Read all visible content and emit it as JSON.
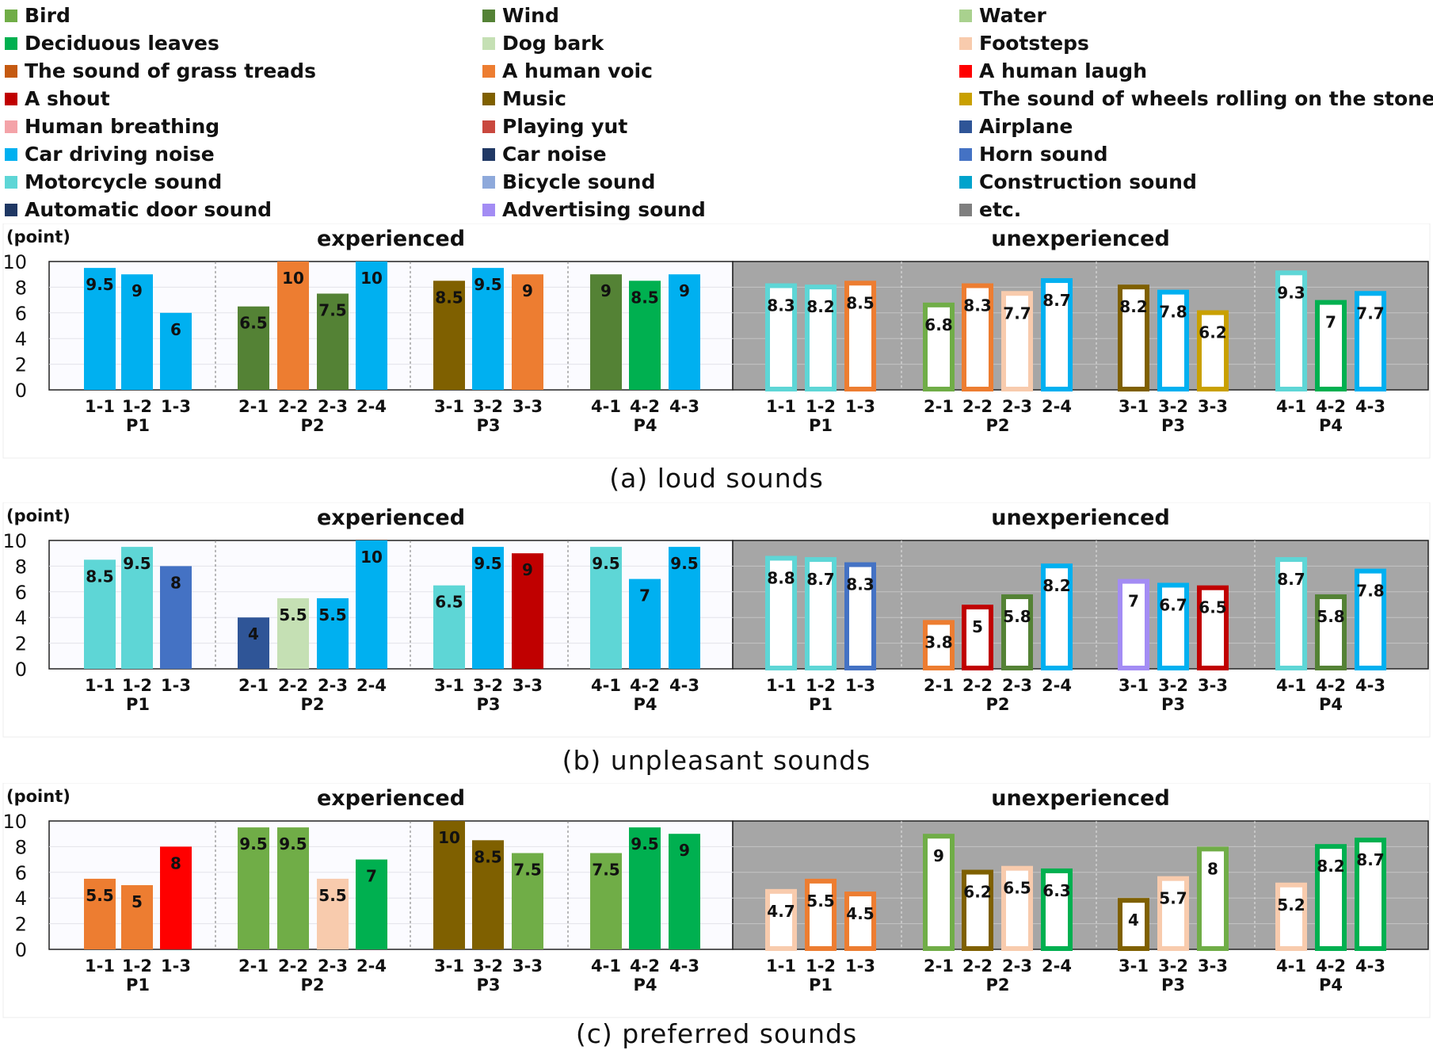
{
  "legend": [
    {
      "label": "Bird",
      "color": "#70AD47"
    },
    {
      "label": "Deciduous leaves",
      "color": "#00B050"
    },
    {
      "label": "The sound of grass treads",
      "color": "#C55A11"
    },
    {
      "label": "A shout",
      "color": "#C00000"
    },
    {
      "label": "Human breathing",
      "color": "#F4A3A8"
    },
    {
      "label": "Car driving noise",
      "color": "#00B0F0"
    },
    {
      "label": "Motorcycle sound",
      "color": "#5ED6D6"
    },
    {
      "label": "Automatic door sound",
      "color": "#1F3864"
    },
    {
      "label": "Wind",
      "color": "#548235"
    },
    {
      "label": "Dog bark",
      "color": "#C5E0B4"
    },
    {
      "label": "A human voic",
      "color": "#ED7D31"
    },
    {
      "label": "Music",
      "color": "#7F6000"
    },
    {
      "label": "Playing yut",
      "color": "#C9483E"
    },
    {
      "label": "Car noise",
      "color": "#203864"
    },
    {
      "label": "Bicycle sound",
      "color": "#8EA9DB"
    },
    {
      "label": "Advertising sound",
      "color": "#A38CF4"
    },
    {
      "label": "Water",
      "color": "#A9D18E"
    },
    {
      "label": "Footsteps",
      "color": "#F8CBAD"
    },
    {
      "label": "A human laugh",
      "color": "#FF0000"
    },
    {
      "label": "The sound of wheels rolling on the stone floor",
      "color": "#C9A000"
    },
    {
      "label": "Airplane",
      "color": "#2F5597"
    },
    {
      "label": "Horn sound",
      "color": "#4472C4"
    },
    {
      "label": "Construction sound",
      "color": "#00A3CC"
    },
    {
      "label": "etc.",
      "color": "#7F7F7F"
    }
  ],
  "chart_data": [
    {
      "type": "bar",
      "caption": "(a)  loud sounds",
      "ylabel": "(point)",
      "ylim": [
        0,
        10
      ],
      "yticks": [
        0,
        2,
        4,
        6,
        8,
        10
      ],
      "group_titles": [
        "experienced",
        "unexperienced"
      ],
      "experienced": [
        {
          "name": "P1",
          "bars": [
            {
              "label": "1-1",
              "value": 9.5,
              "color": "#00B0F0"
            },
            {
              "label": "1-2",
              "value": 9,
              "color": "#00B0F0"
            },
            {
              "label": "1-3",
              "value": 6,
              "color": "#00B0F0"
            }
          ]
        },
        {
          "name": "P2",
          "bars": [
            {
              "label": "2-1",
              "value": 6.5,
              "color": "#548235"
            },
            {
              "label": "2-2",
              "value": 10,
              "color": "#ED7D31"
            },
            {
              "label": "2-3",
              "value": 7.5,
              "color": "#548235"
            },
            {
              "label": "2-4",
              "value": 10,
              "color": "#00B0F0"
            }
          ]
        },
        {
          "name": "P3",
          "bars": [
            {
              "label": "3-1",
              "value": 8.5,
              "color": "#7F6000"
            },
            {
              "label": "3-2",
              "value": 9.5,
              "color": "#00B0F0"
            },
            {
              "label": "3-3",
              "value": 9,
              "color": "#ED7D31"
            }
          ]
        },
        {
          "name": "P4",
          "bars": [
            {
              "label": "4-1",
              "value": 9,
              "color": "#548235"
            },
            {
              "label": "4-2",
              "value": 8.5,
              "color": "#00B050"
            },
            {
              "label": "4-3",
              "value": 9,
              "color": "#00B0F0"
            }
          ]
        }
      ],
      "unexperienced": [
        {
          "name": "P1",
          "bars": [
            {
              "label": "1-1",
              "value": 8.3,
              "color": "#5ED6D6"
            },
            {
              "label": "1-2",
              "value": 8.2,
              "color": "#5ED6D6"
            },
            {
              "label": "1-3",
              "value": 8.5,
              "color": "#ED7D31"
            }
          ]
        },
        {
          "name": "P2",
          "bars": [
            {
              "label": "2-1",
              "value": 6.8,
              "color": "#70AD47"
            },
            {
              "label": "2-2",
              "value": 8.3,
              "color": "#ED7D31"
            },
            {
              "label": "2-3",
              "value": 7.7,
              "color": "#F8CBAD"
            },
            {
              "label": "2-4",
              "value": 8.7,
              "color": "#00B0F0"
            }
          ]
        },
        {
          "name": "P3",
          "bars": [
            {
              "label": "3-1",
              "value": 8.2,
              "color": "#7F6000"
            },
            {
              "label": "3-2",
              "value": 7.8,
              "color": "#00B0F0"
            },
            {
              "label": "3-3",
              "value": 6.2,
              "color": "#C9A000"
            }
          ]
        },
        {
          "name": "P4",
          "bars": [
            {
              "label": "4-1",
              "value": 9.3,
              "color": "#5ED6D6"
            },
            {
              "label": "4-2",
              "value": 7,
              "color": "#00B050"
            },
            {
              "label": "4-3",
              "value": 7.7,
              "color": "#00B0F0"
            }
          ]
        }
      ]
    },
    {
      "type": "bar",
      "caption": "(b)  unpleasant sounds",
      "ylabel": "(point)",
      "ylim": [
        0,
        10
      ],
      "yticks": [
        0,
        2,
        4,
        6,
        8,
        10
      ],
      "group_titles": [
        "experienced",
        "unexperienced"
      ],
      "experienced": [
        {
          "name": "P1",
          "bars": [
            {
              "label": "1-1",
              "value": 8.5,
              "color": "#5ED6D6"
            },
            {
              "label": "1-2",
              "value": 9.5,
              "color": "#5ED6D6"
            },
            {
              "label": "1-3",
              "value": 8,
              "color": "#4472C4"
            }
          ]
        },
        {
          "name": "P2",
          "bars": [
            {
              "label": "2-1",
              "value": 4,
              "color": "#2F5597"
            },
            {
              "label": "2-2",
              "value": 5.5,
              "color": "#C5E0B4"
            },
            {
              "label": "2-3",
              "value": 5.5,
              "color": "#00B0F0"
            },
            {
              "label": "2-4",
              "value": 10,
              "color": "#00B0F0"
            }
          ]
        },
        {
          "name": "P3",
          "bars": [
            {
              "label": "3-1",
              "value": 6.5,
              "color": "#5ED6D6"
            },
            {
              "label": "3-2",
              "value": 9.5,
              "color": "#00B0F0"
            },
            {
              "label": "3-3",
              "value": 9,
              "color": "#C00000"
            }
          ]
        },
        {
          "name": "P4",
          "bars": [
            {
              "label": "4-1",
              "value": 9.5,
              "color": "#5ED6D6"
            },
            {
              "label": "4-2",
              "value": 7,
              "color": "#00B0F0"
            },
            {
              "label": "4-3",
              "value": 9.5,
              "color": "#00B0F0"
            }
          ]
        }
      ],
      "unexperienced": [
        {
          "name": "P1",
          "bars": [
            {
              "label": "1-1",
              "value": 8.8,
              "color": "#5ED6D6"
            },
            {
              "label": "1-2",
              "value": 8.7,
              "color": "#5ED6D6"
            },
            {
              "label": "1-3",
              "value": 8.3,
              "color": "#4472C4"
            }
          ]
        },
        {
          "name": "P2",
          "bars": [
            {
              "label": "2-1",
              "value": 3.8,
              "color": "#ED7D31"
            },
            {
              "label": "2-2",
              "value": 5,
              "color": "#C00000"
            },
            {
              "label": "2-3",
              "value": 5.8,
              "color": "#548235"
            },
            {
              "label": "2-4",
              "value": 8.2,
              "color": "#00B0F0"
            }
          ]
        },
        {
          "name": "P3",
          "bars": [
            {
              "label": "3-1",
              "value": 7,
              "color": "#A38CF4"
            },
            {
              "label": "3-2",
              "value": 6.7,
              "color": "#00B0F0"
            },
            {
              "label": "3-3",
              "value": 6.5,
              "color": "#C00000"
            }
          ]
        },
        {
          "name": "P4",
          "bars": [
            {
              "label": "4-1",
              "value": 8.7,
              "color": "#5ED6D6"
            },
            {
              "label": "4-2",
              "value": 5.8,
              "color": "#548235"
            },
            {
              "label": "4-3",
              "value": 7.8,
              "color": "#00B0F0"
            }
          ]
        }
      ]
    },
    {
      "type": "bar",
      "caption": "(c)  preferred sounds",
      "ylabel": "(point)",
      "ylim": [
        0,
        10
      ],
      "yticks": [
        0,
        2,
        4,
        6,
        8,
        10
      ],
      "group_titles": [
        "experienced",
        "unexperienced"
      ],
      "experienced": [
        {
          "name": "P1",
          "bars": [
            {
              "label": "1-1",
              "value": 5.5,
              "color": "#ED7D31"
            },
            {
              "label": "1-2",
              "value": 5,
              "color": "#ED7D31"
            },
            {
              "label": "1-3",
              "value": 8,
              "color": "#FF0000"
            }
          ]
        },
        {
          "name": "P2",
          "bars": [
            {
              "label": "2-1",
              "value": 9.5,
              "color": "#70AD47"
            },
            {
              "label": "2-2",
              "value": 9.5,
              "color": "#70AD47"
            },
            {
              "label": "2-3",
              "value": 5.5,
              "color": "#F8CBAD"
            },
            {
              "label": "2-4",
              "value": 7,
              "color": "#00B050"
            }
          ]
        },
        {
          "name": "P3",
          "bars": [
            {
              "label": "3-1",
              "value": 10,
              "color": "#7F6000"
            },
            {
              "label": "3-2",
              "value": 8.5,
              "color": "#7F6000"
            },
            {
              "label": "3-3",
              "value": 7.5,
              "color": "#70AD47"
            }
          ]
        },
        {
          "name": "P4",
          "bars": [
            {
              "label": "4-1",
              "value": 7.5,
              "color": "#70AD47"
            },
            {
              "label": "4-2",
              "value": 9.5,
              "color": "#00B050"
            },
            {
              "label": "4-3",
              "value": 9,
              "color": "#00B050"
            }
          ]
        }
      ],
      "unexperienced": [
        {
          "name": "P1",
          "bars": [
            {
              "label": "1-1",
              "value": 4.7,
              "color": "#F8CBAD"
            },
            {
              "label": "1-2",
              "value": 5.5,
              "color": "#ED7D31"
            },
            {
              "label": "1-3",
              "value": 4.5,
              "color": "#ED7D31"
            }
          ]
        },
        {
          "name": "P2",
          "bars": [
            {
              "label": "2-1",
              "value": 9,
              "color": "#70AD47"
            },
            {
              "label": "2-2",
              "value": 6.2,
              "color": "#7F6000"
            },
            {
              "label": "2-3",
              "value": 6.5,
              "color": "#F8CBAD"
            },
            {
              "label": "2-4",
              "value": 6.3,
              "color": "#00B050"
            }
          ]
        },
        {
          "name": "P3",
          "bars": [
            {
              "label": "3-1",
              "value": 4,
              "color": "#7F6000"
            },
            {
              "label": "3-2",
              "value": 5.7,
              "color": "#F8CBAD"
            },
            {
              "label": "3-3",
              "value": 8,
              "color": "#70AD47"
            }
          ]
        },
        {
          "name": "P4",
          "bars": [
            {
              "label": "4-1",
              "value": 5.2,
              "color": "#F8CBAD"
            },
            {
              "label": "4-2",
              "value": 8.2,
              "color": "#00B050"
            },
            {
              "label": "4-3",
              "value": 8.7,
              "color": "#00B050"
            }
          ]
        }
      ]
    }
  ]
}
